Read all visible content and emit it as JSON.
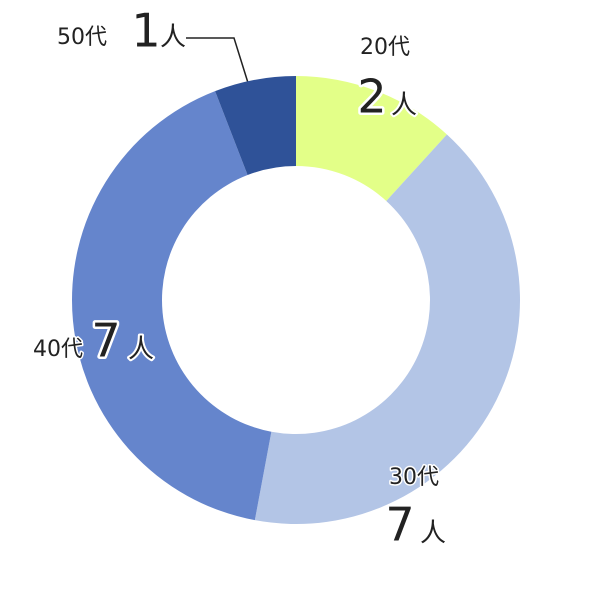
{
  "chart_data": {
    "type": "donut",
    "categories": [
      "20代",
      "30代",
      "40代",
      "50代"
    ],
    "values": [
      2,
      7,
      7,
      1
    ],
    "unit": "人",
    "colors": [
      "#e3ff88",
      "#b3c5e6",
      "#6585cc",
      "#2f5298"
    ]
  }
}
